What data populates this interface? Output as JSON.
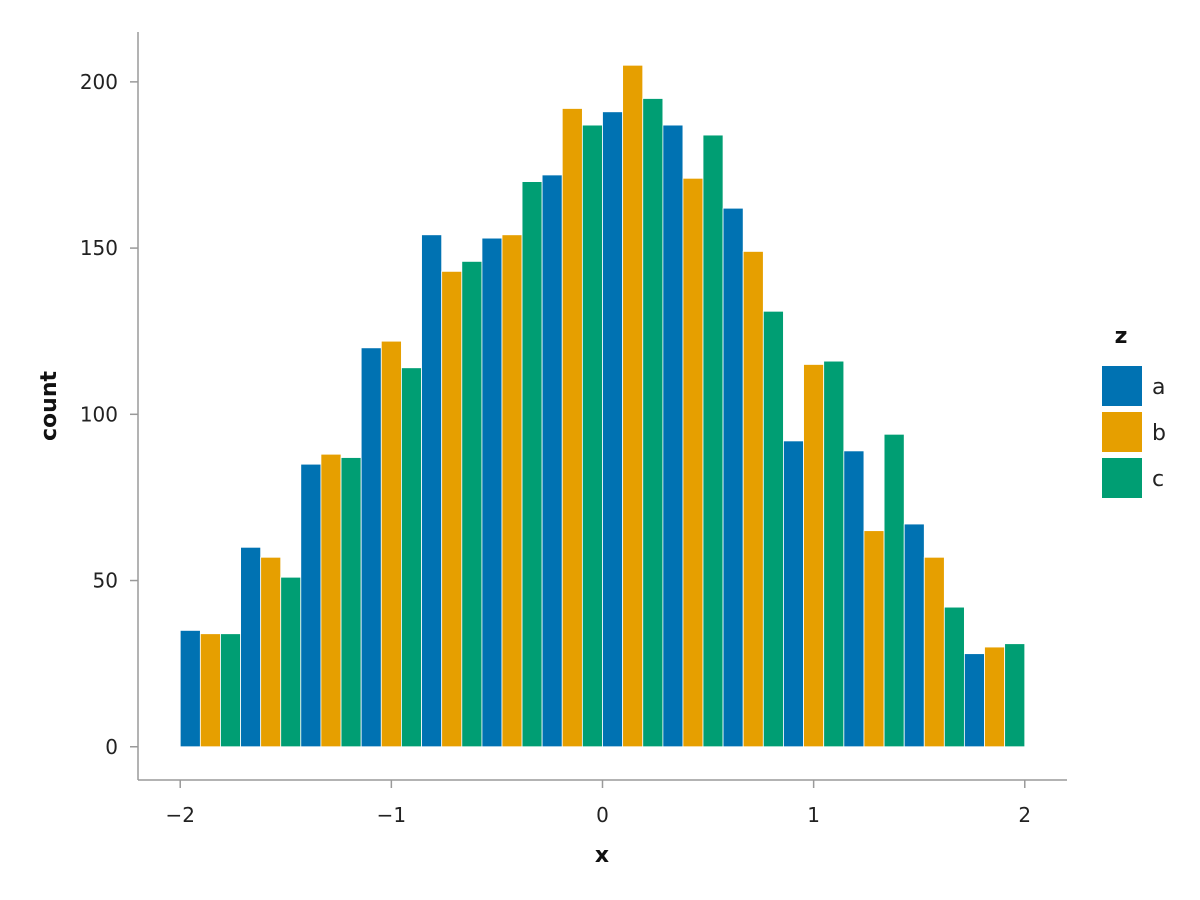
{
  "chart_data": {
    "type": "bar",
    "subtype": "dodged-histogram",
    "title": "",
    "xlabel": "x",
    "ylabel": "count",
    "xlim": [
      -2.2,
      2.2
    ],
    "ylim": [
      -10,
      215
    ],
    "x_ticks": [
      -2,
      -1,
      0,
      1,
      2
    ],
    "x_tick_labels": [
      "−2",
      "−1",
      "0",
      "1",
      "2"
    ],
    "y_ticks": [
      0,
      50,
      100,
      150,
      200
    ],
    "y_tick_labels": [
      "0",
      "50",
      "100",
      "150",
      "200"
    ],
    "grid": false,
    "legend": {
      "title": "z",
      "placement": "right"
    },
    "bins": [
      [
        -2.0,
        -1.714
      ],
      [
        -1.714,
        -1.429
      ],
      [
        -1.429,
        -1.143
      ],
      [
        -1.143,
        -0.857
      ],
      [
        -0.857,
        -0.571
      ],
      [
        -0.571,
        -0.286
      ],
      [
        -0.286,
        0.0
      ],
      [
        0.0,
        0.286
      ],
      [
        0.286,
        0.571
      ],
      [
        0.571,
        0.857
      ],
      [
        0.857,
        1.143
      ],
      [
        1.143,
        1.429
      ],
      [
        1.429,
        1.714
      ],
      [
        1.714,
        2.0
      ]
    ],
    "series": [
      {
        "name": "a",
        "color": "#0072b2",
        "values": [
          35,
          60,
          85,
          120,
          154,
          153,
          172,
          191,
          187,
          162,
          92,
          89,
          67,
          28
        ]
      },
      {
        "name": "b",
        "color": "#e69f00",
        "values": [
          34,
          57,
          88,
          122,
          143,
          154,
          192,
          205,
          171,
          149,
          115,
          65,
          57,
          30
        ]
      },
      {
        "name": "c",
        "color": "#009e73",
        "values": [
          34,
          51,
          87,
          114,
          146,
          170,
          187,
          195,
          184,
          131,
          116,
          94,
          42,
          31
        ]
      }
    ]
  }
}
